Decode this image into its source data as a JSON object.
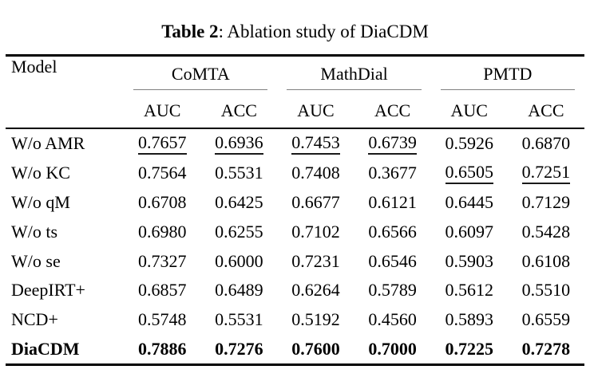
{
  "caption": {
    "tag": "Table 2",
    "text": ": Ablation study of DiaCDM"
  },
  "table": {
    "model_header": "Model",
    "groups": [
      {
        "name": "CoMTA",
        "sub": [
          "AUC",
          "ACC"
        ]
      },
      {
        "name": "MathDial",
        "sub": [
          "AUC",
          "ACC"
        ]
      },
      {
        "name": "PMTD",
        "sub": [
          "AUC",
          "ACC"
        ]
      }
    ],
    "rows": [
      {
        "model": "W/o AMR",
        "values": [
          "0.7657",
          "0.6936",
          "0.7453",
          "0.6739",
          "0.5926",
          "0.6870"
        ]
      },
      {
        "model": "W/o KC",
        "values": [
          "0.7564",
          "0.5531",
          "0.7408",
          "0.3677",
          "0.6505",
          "0.7251"
        ]
      },
      {
        "model": "W/o qM",
        "values": [
          "0.6708",
          "0.6425",
          "0.6677",
          "0.6121",
          "0.6445",
          "0.7129"
        ]
      },
      {
        "model": "W/o ts",
        "values": [
          "0.6980",
          "0.6255",
          "0.7102",
          "0.6566",
          "0.6097",
          "0.5428"
        ]
      },
      {
        "model": "W/o se",
        "values": [
          "0.7327",
          "0.6000",
          "0.7231",
          "0.6546",
          "0.5903",
          "0.6108"
        ]
      },
      {
        "model": "DeepIRT+",
        "values": [
          "0.6857",
          "0.6489",
          "0.6264",
          "0.5789",
          "0.5612",
          "0.5510"
        ]
      },
      {
        "model": "NCD+",
        "values": [
          "0.5748",
          "0.5531",
          "0.5192",
          "0.4560",
          "0.5893",
          "0.6559"
        ]
      },
      {
        "model": "DiaCDM",
        "values": [
          "0.7886",
          "0.7276",
          "0.7600",
          "0.7000",
          "0.7225",
          "0.7278"
        ]
      }
    ],
    "emphasis": {
      "bold_row_model": "DiaCDM",
      "underlined_cells": [
        [
          0,
          0
        ],
        [
          0,
          1
        ],
        [
          0,
          2
        ],
        [
          0,
          3
        ],
        [
          1,
          4
        ],
        [
          1,
          5
        ]
      ]
    },
    "colors": {
      "text": "#000000",
      "background": "#ffffff",
      "main_rule": "#000000",
      "cmidrule": "#808080"
    }
  }
}
